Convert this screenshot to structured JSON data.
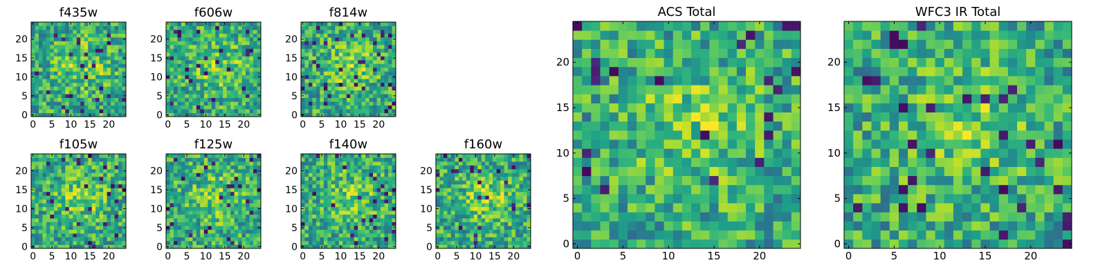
{
  "chart_data": [
    {
      "type": "heatmap",
      "title": "f435w",
      "size": 25,
      "xticks": [
        0,
        5,
        10,
        15,
        20
      ],
      "yticks": [
        0,
        5,
        10,
        15,
        20
      ],
      "colormap": "viridis",
      "seed": 435
    },
    {
      "type": "heatmap",
      "title": "f606w",
      "size": 25,
      "xticks": [
        0,
        5,
        10,
        15,
        20
      ],
      "yticks": [
        0,
        5,
        10,
        15,
        20
      ],
      "colormap": "viridis",
      "seed": 606
    },
    {
      "type": "heatmap",
      "title": "f814w",
      "size": 25,
      "xticks": [
        0,
        5,
        10,
        15,
        20
      ],
      "yticks": [
        0,
        5,
        10,
        15,
        20
      ],
      "colormap": "viridis",
      "seed": 814
    },
    {
      "type": "heatmap",
      "title": "f105w",
      "size": 25,
      "xticks": [
        0,
        5,
        10,
        15,
        20
      ],
      "yticks": [
        0,
        5,
        10,
        15,
        20
      ],
      "colormap": "viridis",
      "seed": 105
    },
    {
      "type": "heatmap",
      "title": "f125w",
      "size": 25,
      "xticks": [
        0,
        5,
        10,
        15,
        20
      ],
      "yticks": [
        0,
        5,
        10,
        15,
        20
      ],
      "colormap": "viridis",
      "seed": 125
    },
    {
      "type": "heatmap",
      "title": "f140w",
      "size": 25,
      "xticks": [
        0,
        5,
        10,
        15,
        20
      ],
      "yticks": [
        0,
        5,
        10,
        15,
        20
      ],
      "colormap": "viridis",
      "seed": 140
    },
    {
      "type": "heatmap",
      "title": "f160w",
      "size": 25,
      "xticks": [
        0,
        5,
        10,
        15,
        20
      ],
      "yticks": [
        0,
        5,
        10,
        15,
        20
      ],
      "colormap": "viridis",
      "seed": 160
    },
    {
      "type": "heatmap",
      "title": "ACS Total",
      "size": 25,
      "xticks": [
        0,
        5,
        10,
        15,
        20
      ],
      "yticks": [
        0,
        5,
        10,
        15,
        20
      ],
      "colormap": "viridis",
      "seed": 1001
    },
    {
      "type": "heatmap",
      "title": "WFC3 IR Total",
      "size": 25,
      "xticks": [
        0,
        5,
        10,
        15,
        20
      ],
      "yticks": [
        0,
        5,
        10,
        15,
        20
      ],
      "colormap": "viridis",
      "seed": 2002
    }
  ]
}
